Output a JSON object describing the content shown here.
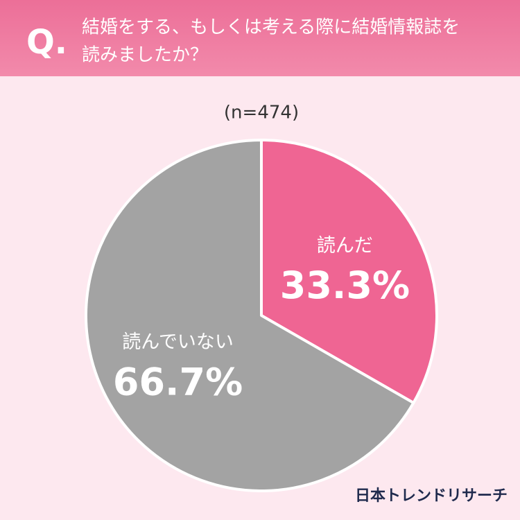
{
  "chart_data": {
    "type": "pie",
    "question_mark": "Q.",
    "title_lines": [
      "結婚をする、もしくは考える際に結婚情報誌を",
      "読みましたか？"
    ],
    "subtitle": "(n=474)",
    "categories": [
      "読んだ",
      "読んでいない"
    ],
    "values": [
      33.3,
      66.7
    ],
    "value_labels": [
      "33.3%",
      "66.7%"
    ],
    "colors": [
      "#ef6593",
      "#a3a3a3"
    ],
    "source": "日本トレンドリサーチ"
  }
}
